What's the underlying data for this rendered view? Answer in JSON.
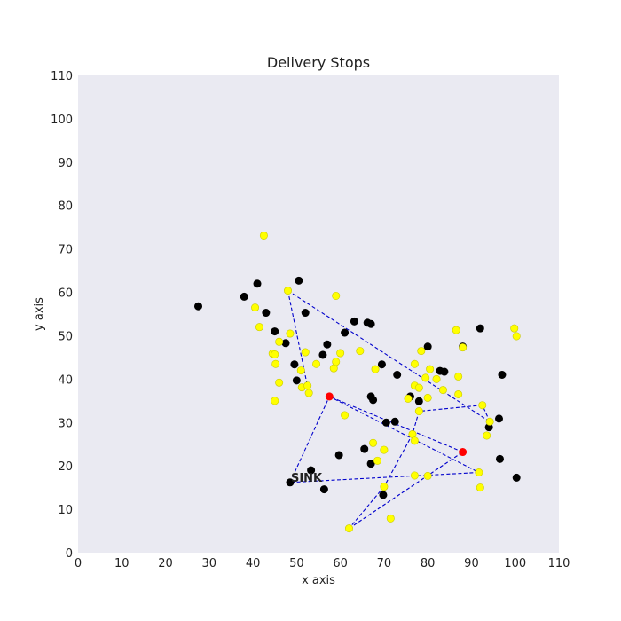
{
  "chart_data": {
    "type": "scatter",
    "title": "Delivery Stops",
    "xlabel": "x axis",
    "ylabel": "y axis",
    "xlim": [
      0,
      110
    ],
    "ylim": [
      0,
      110
    ],
    "xticks": [
      0,
      10,
      20,
      30,
      40,
      50,
      60,
      70,
      80,
      90,
      100,
      110
    ],
    "yticks": [
      0,
      10,
      20,
      30,
      40,
      50,
      60,
      70,
      80,
      90,
      100,
      110
    ],
    "grid": false,
    "background_color": "#eaeaf2",
    "sink": {
      "x": 48.5,
      "y": 16.2,
      "label": "SINK"
    },
    "series": [
      {
        "marker_color": "#000000",
        "points": [
          [
            27.5,
            56.8
          ],
          [
            38,
            59
          ],
          [
            41,
            62
          ],
          [
            43,
            55.3
          ],
          [
            45,
            51
          ],
          [
            47.5,
            48.3
          ],
          [
            50.5,
            62.7
          ],
          [
            52,
            55.3
          ],
          [
            49.5,
            43.4
          ],
          [
            50,
            39.7
          ],
          [
            57,
            48
          ],
          [
            56,
            45.6
          ],
          [
            61,
            50.7
          ],
          [
            63.2,
            53.3
          ],
          [
            66.2,
            53
          ],
          [
            67,
            52.7
          ],
          [
            69.5,
            43.4
          ],
          [
            73,
            41
          ],
          [
            67,
            36
          ],
          [
            67.5,
            35.2
          ],
          [
            70.5,
            30
          ],
          [
            72.5,
            30.2
          ],
          [
            76,
            36
          ],
          [
            78,
            34.9
          ],
          [
            80,
            47.5
          ],
          [
            82.8,
            41.9
          ],
          [
            83.8,
            41.7
          ],
          [
            88,
            47.5
          ],
          [
            92,
            51.7
          ],
          [
            97,
            41
          ],
          [
            96.3,
            30.9
          ],
          [
            94,
            28.9
          ],
          [
            96.5,
            21.6
          ],
          [
            100.3,
            17.3
          ],
          [
            53.3,
            19
          ],
          [
            56.3,
            14.6
          ],
          [
            59.7,
            22.5
          ],
          [
            65.5,
            23.9
          ],
          [
            67,
            20.5
          ],
          [
            69.8,
            13.3
          ],
          [
            48.5,
            16.2
          ]
        ]
      },
      {
        "marker_color": "#ffff00",
        "points": [
          [
            42.5,
            73.1
          ],
          [
            40.5,
            56.5
          ],
          [
            41.5,
            52
          ],
          [
            48,
            60.4
          ],
          [
            48.5,
            50.5
          ],
          [
            46,
            48.6
          ],
          [
            44.5,
            45.9
          ],
          [
            45,
            45.7
          ],
          [
            45.2,
            43.5
          ],
          [
            46,
            39.2
          ],
          [
            45,
            35
          ],
          [
            52,
            46.2
          ],
          [
            51,
            42
          ],
          [
            51.2,
            38.1
          ],
          [
            52.5,
            38.5
          ],
          [
            52.8,
            36.8
          ],
          [
            54.5,
            43.5
          ],
          [
            58.5,
            42.5
          ],
          [
            59,
            44
          ],
          [
            60,
            46
          ],
          [
            59,
            59.2
          ],
          [
            64.5,
            46.5
          ],
          [
            61,
            31.7
          ],
          [
            68,
            42.3
          ],
          [
            75.5,
            35.5
          ],
          [
            77,
            43.5
          ],
          [
            78.5,
            46.5
          ],
          [
            77,
            38.5
          ],
          [
            78,
            38
          ],
          [
            79.5,
            40.3
          ],
          [
            80.5,
            42.3
          ],
          [
            82,
            40
          ],
          [
            80,
            35.7
          ],
          [
            78,
            32.6
          ],
          [
            83.5,
            37.5
          ],
          [
            87,
            40.6
          ],
          [
            87,
            36.5
          ],
          [
            86.5,
            51.3
          ],
          [
            88,
            47.3
          ],
          [
            92.5,
            34
          ],
          [
            94.2,
            30.2
          ],
          [
            93.5,
            27
          ],
          [
            99.8,
            51.7
          ],
          [
            100.3,
            49.9
          ],
          [
            76.5,
            27.3
          ],
          [
            77,
            25.8
          ],
          [
            67.5,
            25.3
          ],
          [
            70,
            23.7
          ],
          [
            68.5,
            21.2
          ],
          [
            70,
            15.2
          ],
          [
            77,
            17.8
          ],
          [
            80,
            17.7
          ],
          [
            91.7,
            18.5
          ],
          [
            92,
            15
          ],
          [
            71.5,
            7.9
          ],
          [
            62,
            5.6
          ]
        ]
      },
      {
        "marker_color": "#ff0000",
        "points": [
          [
            57.5,
            36
          ],
          [
            88,
            23.2
          ]
        ]
      }
    ],
    "route": {
      "line_color": "#0000cc",
      "style": "dashed",
      "segments": [
        [
          [
            48,
            60.4
          ],
          [
            94.2,
            30.2
          ]
        ],
        [
          [
            94.2,
            30.2
          ],
          [
            92.5,
            34
          ]
        ],
        [
          [
            92.5,
            34
          ],
          [
            78,
            32.6
          ]
        ],
        [
          [
            78,
            32.6
          ],
          [
            76.5,
            27.3
          ]
        ],
        [
          [
            76.5,
            27.3
          ],
          [
            70,
            15.2
          ]
        ],
        [
          [
            70,
            15.2
          ],
          [
            62,
            5.6
          ]
        ],
        [
          [
            62,
            5.6
          ],
          [
            88,
            23.2
          ]
        ],
        [
          [
            88,
            23.2
          ],
          [
            57.5,
            36
          ]
        ],
        [
          [
            57.5,
            36
          ],
          [
            91.7,
            18.5
          ]
        ],
        [
          [
            91.7,
            18.5
          ],
          [
            48.5,
            16.2
          ]
        ],
        [
          [
            48.5,
            16.2
          ],
          [
            57.5,
            36
          ]
        ],
        [
          [
            48,
            60.4
          ],
          [
            52.8,
            36.8
          ]
        ],
        [
          [
            52.8,
            36.8
          ],
          [
            51.2,
            38.1
          ]
        ]
      ]
    }
  }
}
